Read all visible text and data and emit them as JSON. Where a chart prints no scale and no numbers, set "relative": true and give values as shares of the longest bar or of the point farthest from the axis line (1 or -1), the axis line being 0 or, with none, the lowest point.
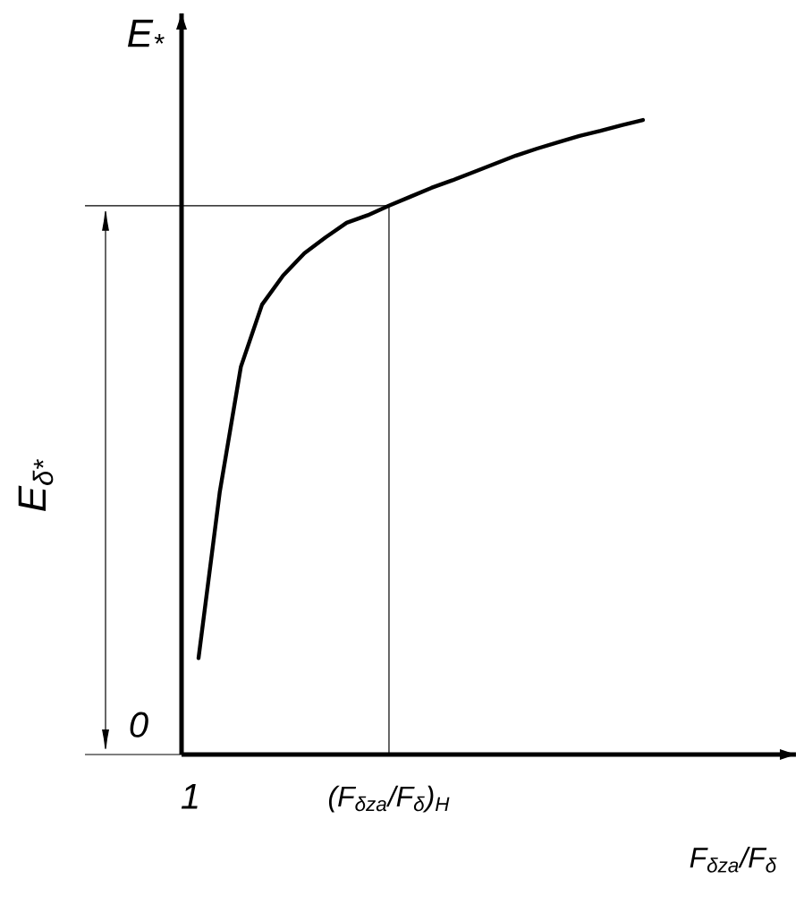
{
  "chart_data": {
    "type": "line",
    "relative": true,
    "color": "#000000",
    "ylabel": "E$_{*}$",
    "xlabel": "F$_{δza}$/F$_{δ}$",
    "categories": [
      null,
      null,
      null,
      null,
      null,
      null,
      null,
      null,
      null,
      null,
      null,
      null,
      null,
      null,
      null,
      null,
      null,
      null,
      null,
      null,
      null,
      null
    ],
    "values": [
      0.152,
      0.413,
      0.611,
      0.709,
      0.755,
      0.79,
      0.815,
      0.838,
      0.85,
      0.865,
      0.879,
      0.893,
      0.905,
      0.918,
      0.931,
      0.944,
      0.955,
      0.965,
      0.975,
      0.983,
      0.992,
      1.0
    ],
    "ref_lines": [
      {
        "axis": "y",
        "value": 0.865,
        "label": "E$_{δ*}$"
      }
    ],
    "annotations": [
      "0",
      "1",
      "(F$_{δza}$/F$_{δ}$)$_{Н}$"
    ]
  }
}
